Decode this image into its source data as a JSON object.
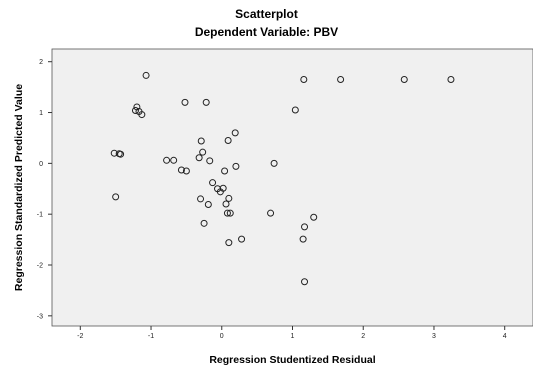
{
  "chart_data": {
    "type": "scatter",
    "title": "Scatterplot",
    "subtitle": "Dependent Variable: PBV",
    "xlabel": "Regression Studentized Residual",
    "ylabel": "Regression Standardized Predicted Value",
    "xlim": [
      -2.4,
      4.4
    ],
    "ylim": [
      -3.2,
      2.25
    ],
    "xticks": [
      -2,
      -1,
      0,
      1,
      2,
      3,
      4
    ],
    "yticks": [
      -3,
      -2,
      -1,
      0,
      1,
      2
    ],
    "grid": false,
    "colors": {
      "plot_background": "#f0f0f0",
      "marker_edge": "#222222"
    },
    "points": [
      {
        "x": -1.07,
        "y": 1.73
      },
      {
        "x": -1.2,
        "y": 1.11
      },
      {
        "x": -1.22,
        "y": 1.04
      },
      {
        "x": -1.17,
        "y": 1.02
      },
      {
        "x": -1.13,
        "y": 0.96
      },
      {
        "x": -0.52,
        "y": 1.2
      },
      {
        "x": -0.22,
        "y": 1.2
      },
      {
        "x": 1.16,
        "y": 1.65
      },
      {
        "x": 1.68,
        "y": 1.65
      },
      {
        "x": 2.58,
        "y": 1.65
      },
      {
        "x": 3.24,
        "y": 1.65
      },
      {
        "x": 1.04,
        "y": 1.05
      },
      {
        "x": 0.19,
        "y": 0.6
      },
      {
        "x": -0.29,
        "y": 0.44
      },
      {
        "x": 0.09,
        "y": 0.45
      },
      {
        "x": -1.52,
        "y": 0.2
      },
      {
        "x": -1.45,
        "y": 0.19
      },
      {
        "x": -1.43,
        "y": 0.18
      },
      {
        "x": -0.78,
        "y": 0.06
      },
      {
        "x": -0.68,
        "y": 0.06
      },
      {
        "x": -0.27,
        "y": 0.22
      },
      {
        "x": -0.32,
        "y": 0.11
      },
      {
        "x": -0.17,
        "y": 0.05
      },
      {
        "x": -0.57,
        "y": -0.13
      },
      {
        "x": -0.5,
        "y": -0.15
      },
      {
        "x": 0.2,
        "y": -0.06
      },
      {
        "x": 0.74,
        "y": 0.0
      },
      {
        "x": 0.04,
        "y": -0.15
      },
      {
        "x": -0.13,
        "y": -0.38
      },
      {
        "x": -0.06,
        "y": -0.5
      },
      {
        "x": -0.02,
        "y": -0.56
      },
      {
        "x": 0.02,
        "y": -0.49
      },
      {
        "x": -0.3,
        "y": -0.7
      },
      {
        "x": -0.19,
        "y": -0.81
      },
      {
        "x": 0.1,
        "y": -0.69
      },
      {
        "x": 0.06,
        "y": -0.8
      },
      {
        "x": 0.08,
        "y": -0.98
      },
      {
        "x": 0.12,
        "y": -0.98
      },
      {
        "x": 0.69,
        "y": -0.98
      },
      {
        "x": -1.5,
        "y": -0.66
      },
      {
        "x": -0.25,
        "y": -1.18
      },
      {
        "x": 1.3,
        "y": -1.06
      },
      {
        "x": 1.17,
        "y": -1.25
      },
      {
        "x": 1.15,
        "y": -1.49
      },
      {
        "x": 0.28,
        "y": -1.49
      },
      {
        "x": 0.1,
        "y": -1.56
      },
      {
        "x": 1.17,
        "y": -2.33
      }
    ]
  }
}
